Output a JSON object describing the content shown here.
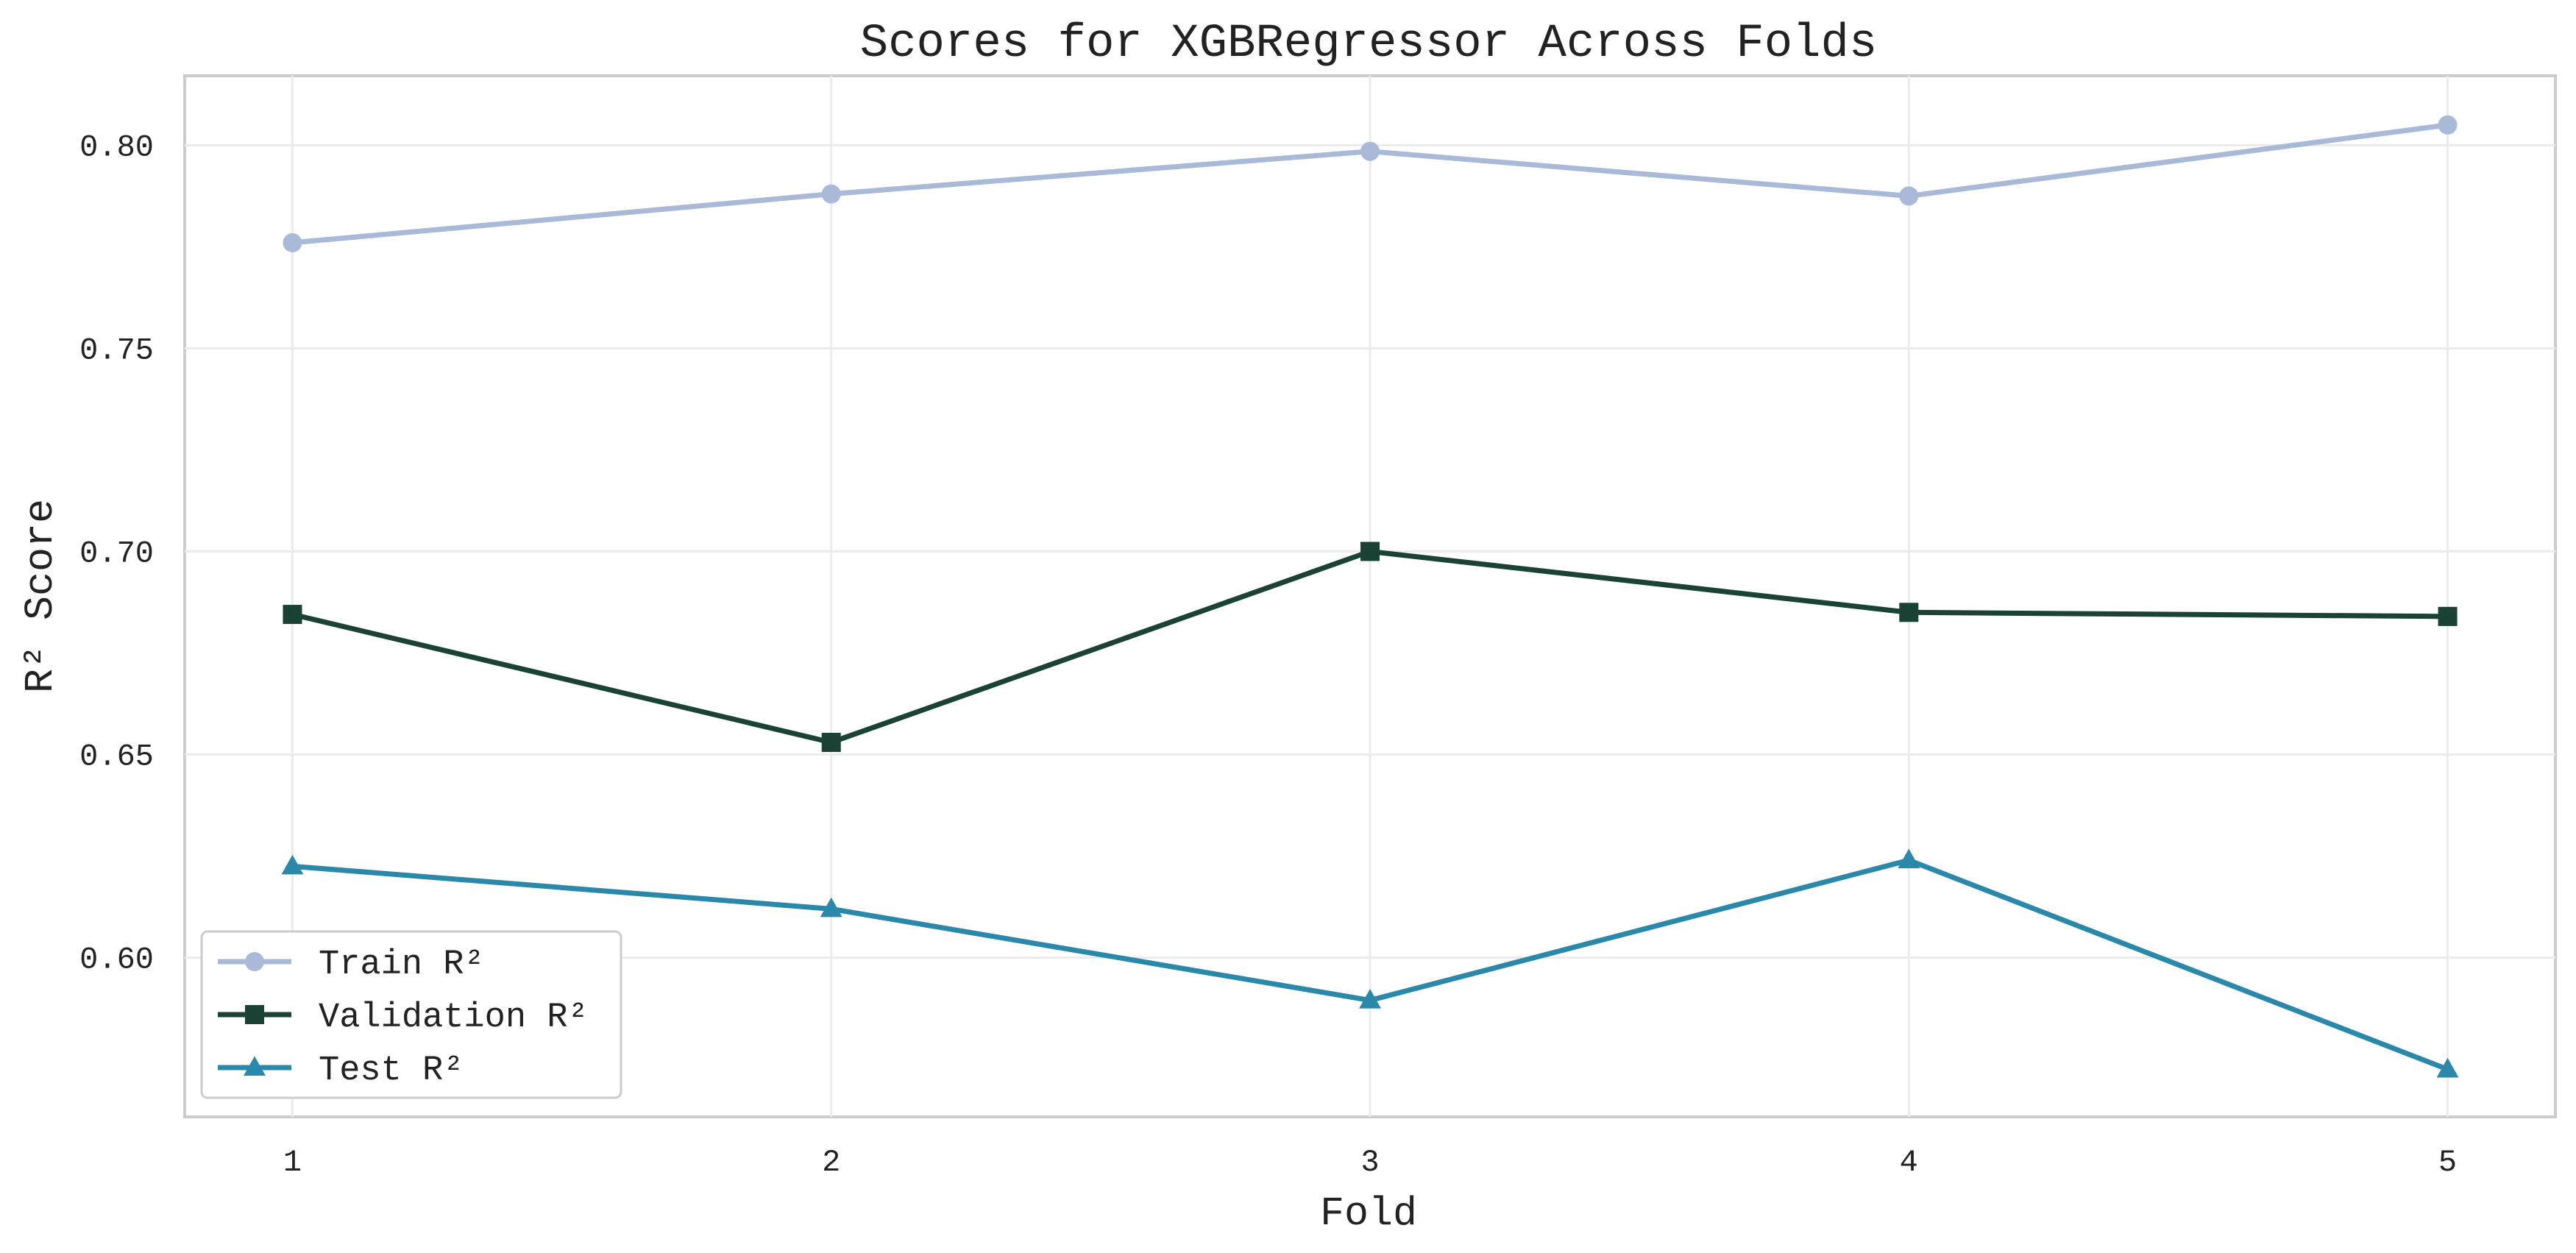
{
  "chart_data": {
    "type": "line",
    "title": "Scores for XGBRegressor Across Folds",
    "xlabel": "Fold",
    "ylabel": "R² Score",
    "x": [
      1,
      2,
      3,
      4,
      5
    ],
    "x_tick_labels": [
      "1",
      "2",
      "3",
      "4",
      "5"
    ],
    "xlim": [
      0.8,
      5.2
    ],
    "ylim": [
      0.5608,
      0.8171
    ],
    "y_ticks": [
      0.6,
      0.65,
      0.7,
      0.75,
      0.8
    ],
    "y_tick_labels": [
      "0.60",
      "0.65",
      "0.70",
      "0.75",
      "0.80"
    ],
    "grid": true,
    "legend_position": "lower-left",
    "series": [
      {
        "name": "Train R²",
        "values": [
          0.776,
          0.788,
          0.7985,
          0.7875,
          0.805
        ],
        "color": "#a9bad9",
        "marker": "circle"
      },
      {
        "name": "Validation R²",
        "values": [
          0.6845,
          0.653,
          0.7,
          0.685,
          0.684
        ],
        "color": "#1a4335",
        "marker": "square"
      },
      {
        "name": "Test R²",
        "values": [
          0.6225,
          0.612,
          0.5895,
          0.624,
          0.5725
        ],
        "color": "#2a88aa",
        "marker": "triangle"
      }
    ]
  }
}
